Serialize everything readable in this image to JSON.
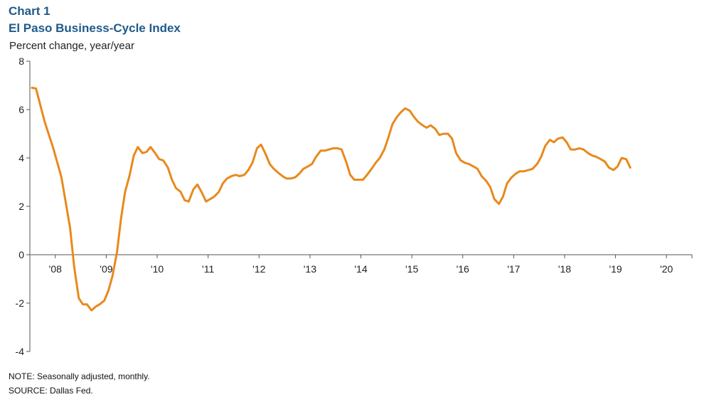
{
  "header": {
    "chart_label": "Chart 1",
    "title": "El Paso Business-Cycle Index",
    "ylabel": "Percent change, year/year"
  },
  "footer": {
    "note": "NOTE: Seasonally adjusted, monthly.",
    "source": "SOURCE: Dallas Fed."
  },
  "chart_data": {
    "type": "line",
    "title": "El Paso Business-Cycle Index",
    "ylabel": "Percent change, year/year",
    "xlabel": "",
    "ylim": [
      -4,
      8
    ],
    "yticks": [
      -4,
      -2,
      0,
      2,
      4,
      6,
      8
    ],
    "xlim": [
      2007.5,
      2020.5
    ],
    "xtick_labels": [
      {
        "label": "'08",
        "year": 2008
      },
      {
        "label": "'09",
        "year": 2009
      },
      {
        "label": "'10",
        "year": 2010
      },
      {
        "label": "'11",
        "year": 2011
      },
      {
        "label": "'12",
        "year": 2012
      },
      {
        "label": "'13",
        "year": 2013
      },
      {
        "label": "'14",
        "year": 2014
      },
      {
        "label": "'15",
        "year": 2015
      },
      {
        "label": "'16",
        "year": 2016
      },
      {
        "label": "'17",
        "year": 2017
      },
      {
        "label": "'18",
        "year": 2018
      },
      {
        "label": "'19",
        "year": 2019
      },
      {
        "label": "'20",
        "year": 2020
      }
    ],
    "grid": false,
    "line_color": "#e8891d",
    "series": [
      {
        "points": [
          [
            2007.54,
            6.9
          ],
          [
            2007.62,
            6.87
          ],
          [
            2007.79,
            5.5
          ],
          [
            2007.96,
            4.4
          ],
          [
            2008.12,
            3.2
          ],
          [
            2008.29,
            1.1
          ],
          [
            2008.37,
            -0.5
          ],
          [
            2008.46,
            -1.8
          ],
          [
            2008.54,
            -2.05
          ],
          [
            2008.62,
            -2.05
          ],
          [
            2008.71,
            -2.3
          ],
          [
            2008.79,
            -2.15
          ],
          [
            2008.87,
            -2.05
          ],
          [
            2008.96,
            -1.9
          ],
          [
            2009.04,
            -1.5
          ],
          [
            2009.12,
            -0.9
          ],
          [
            2009.21,
            0.1
          ],
          [
            2009.29,
            1.5
          ],
          [
            2009.37,
            2.6
          ],
          [
            2009.46,
            3.3
          ],
          [
            2009.54,
            4.1
          ],
          [
            2009.62,
            4.45
          ],
          [
            2009.71,
            4.2
          ],
          [
            2009.79,
            4.25
          ],
          [
            2009.87,
            4.45
          ],
          [
            2009.96,
            4.2
          ],
          [
            2010.04,
            3.95
          ],
          [
            2010.12,
            3.9
          ],
          [
            2010.21,
            3.6
          ],
          [
            2010.29,
            3.1
          ],
          [
            2010.37,
            2.75
          ],
          [
            2010.46,
            2.6
          ],
          [
            2010.54,
            2.25
          ],
          [
            2010.62,
            2.2
          ],
          [
            2010.71,
            2.7
          ],
          [
            2010.79,
            2.9
          ],
          [
            2010.87,
            2.6
          ],
          [
            2010.96,
            2.2
          ],
          [
            2011.04,
            2.3
          ],
          [
            2011.12,
            2.4
          ],
          [
            2011.21,
            2.6
          ],
          [
            2011.29,
            2.95
          ],
          [
            2011.37,
            3.15
          ],
          [
            2011.46,
            3.25
          ],
          [
            2011.54,
            3.3
          ],
          [
            2011.62,
            3.25
          ],
          [
            2011.71,
            3.3
          ],
          [
            2011.79,
            3.5
          ],
          [
            2011.87,
            3.8
          ],
          [
            2011.96,
            4.4
          ],
          [
            2012.04,
            4.55
          ],
          [
            2012.12,
            4.2
          ],
          [
            2012.21,
            3.75
          ],
          [
            2012.29,
            3.55
          ],
          [
            2012.37,
            3.4
          ],
          [
            2012.46,
            3.25
          ],
          [
            2012.54,
            3.15
          ],
          [
            2012.62,
            3.15
          ],
          [
            2012.71,
            3.2
          ],
          [
            2012.79,
            3.35
          ],
          [
            2012.87,
            3.55
          ],
          [
            2012.96,
            3.65
          ],
          [
            2013.04,
            3.75
          ],
          [
            2013.12,
            4.05
          ],
          [
            2013.21,
            4.3
          ],
          [
            2013.29,
            4.3
          ],
          [
            2013.37,
            4.35
          ],
          [
            2013.46,
            4.4
          ],
          [
            2013.54,
            4.4
          ],
          [
            2013.62,
            4.35
          ],
          [
            2013.71,
            3.85
          ],
          [
            2013.79,
            3.3
          ],
          [
            2013.87,
            3.1
          ],
          [
            2013.96,
            3.1
          ],
          [
            2014.04,
            3.1
          ],
          [
            2014.12,
            3.3
          ],
          [
            2014.21,
            3.55
          ],
          [
            2014.29,
            3.8
          ],
          [
            2014.37,
            4.0
          ],
          [
            2014.46,
            4.35
          ],
          [
            2014.54,
            4.85
          ],
          [
            2014.62,
            5.4
          ],
          [
            2014.71,
            5.7
          ],
          [
            2014.79,
            5.9
          ],
          [
            2014.87,
            6.05
          ],
          [
            2014.96,
            5.95
          ],
          [
            2015.04,
            5.7
          ],
          [
            2015.12,
            5.5
          ],
          [
            2015.21,
            5.35
          ],
          [
            2015.29,
            5.25
          ],
          [
            2015.37,
            5.35
          ],
          [
            2015.46,
            5.2
          ],
          [
            2015.54,
            4.95
          ],
          [
            2015.62,
            5.0
          ],
          [
            2015.71,
            5.0
          ],
          [
            2015.79,
            4.8
          ],
          [
            2015.87,
            4.2
          ],
          [
            2015.96,
            3.9
          ],
          [
            2016.04,
            3.8
          ],
          [
            2016.12,
            3.75
          ],
          [
            2016.21,
            3.65
          ],
          [
            2016.29,
            3.55
          ],
          [
            2016.37,
            3.25
          ],
          [
            2016.46,
            3.05
          ],
          [
            2016.54,
            2.8
          ],
          [
            2016.62,
            2.3
          ],
          [
            2016.71,
            2.1
          ],
          [
            2016.79,
            2.4
          ],
          [
            2016.87,
            2.95
          ],
          [
            2016.96,
            3.2
          ],
          [
            2017.04,
            3.35
          ],
          [
            2017.12,
            3.45
          ],
          [
            2017.21,
            3.45
          ],
          [
            2017.29,
            3.5
          ],
          [
            2017.37,
            3.55
          ],
          [
            2017.46,
            3.75
          ],
          [
            2017.54,
            4.05
          ],
          [
            2017.62,
            4.5
          ],
          [
            2017.71,
            4.75
          ],
          [
            2017.79,
            4.65
          ],
          [
            2017.87,
            4.8
          ],
          [
            2017.96,
            4.85
          ],
          [
            2018.04,
            4.65
          ],
          [
            2018.12,
            4.35
          ],
          [
            2018.21,
            4.35
          ],
          [
            2018.29,
            4.4
          ],
          [
            2018.37,
            4.35
          ],
          [
            2018.46,
            4.2
          ],
          [
            2018.54,
            4.1
          ],
          [
            2018.62,
            4.05
          ],
          [
            2018.71,
            3.95
          ],
          [
            2018.79,
            3.85
          ],
          [
            2018.87,
            3.6
          ],
          [
            2018.96,
            3.5
          ],
          [
            2019.04,
            3.65
          ],
          [
            2019.12,
            4.0
          ],
          [
            2019.21,
            3.95
          ],
          [
            2019.29,
            3.6
          ]
        ]
      }
    ]
  }
}
